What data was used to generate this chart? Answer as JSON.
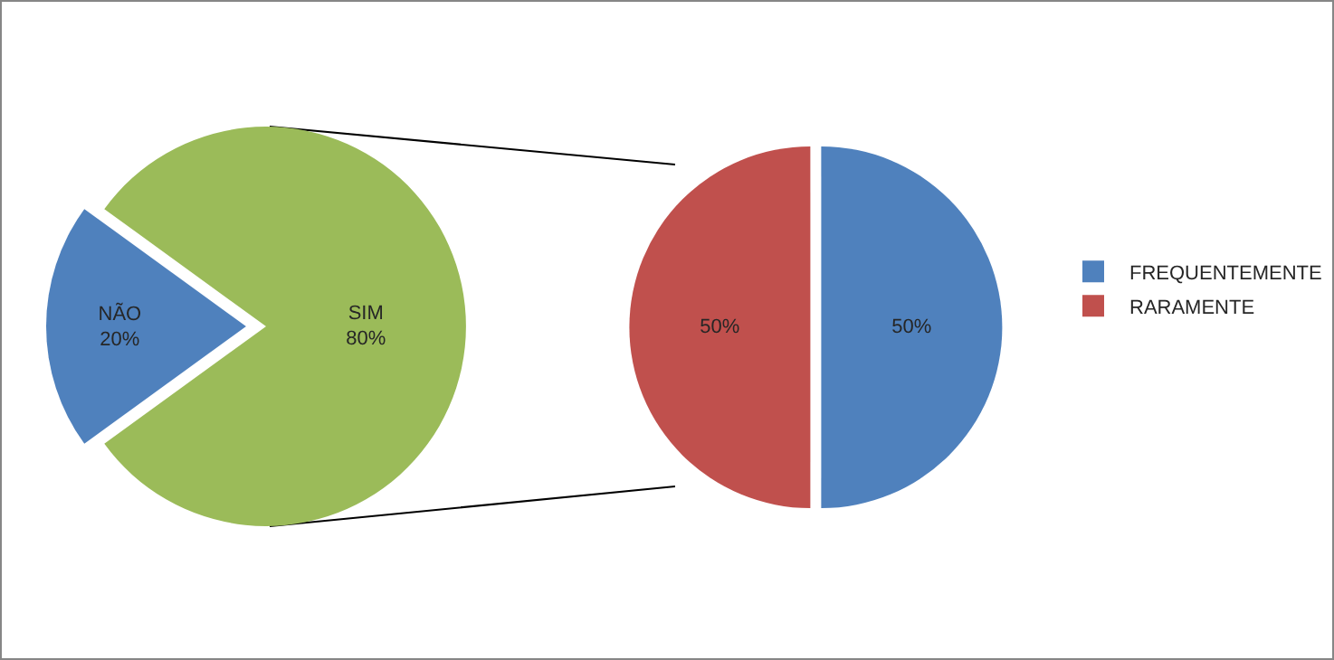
{
  "chart_data": [
    {
      "type": "pie",
      "categories": [
        "NÃO",
        "SIM"
      ],
      "values": [
        20,
        80
      ],
      "colors": [
        "#4f81bd",
        "#9bbb59"
      ],
      "value_labels": [
        "20%",
        "80%"
      ],
      "legend": false
    },
    {
      "type": "pie",
      "categories": [
        "FREQUENTEMENTE",
        "RARAMENTE"
      ],
      "values": [
        50,
        50
      ],
      "colors": [
        "#4f81bd",
        "#c0504d"
      ],
      "value_labels": [
        "50%",
        "50%"
      ],
      "legend": "right"
    }
  ]
}
